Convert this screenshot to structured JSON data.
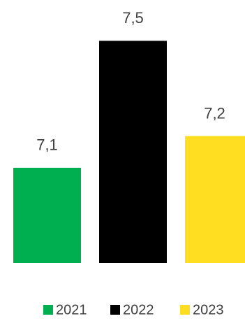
{
  "chart_data": {
    "type": "bar",
    "categories": [
      null
    ],
    "series": [
      {
        "name": "2021",
        "color": "#00b050",
        "values": [
          7.1
        ],
        "value_labels": [
          "7,1"
        ]
      },
      {
        "name": "2022",
        "color": "#000000",
        "values": [
          7.5
        ],
        "value_labels": [
          "7,5"
        ]
      },
      {
        "name": "2023",
        "color": "#ffde21",
        "values": [
          7.2
        ],
        "value_labels": [
          "7,2"
        ]
      }
    ],
    "ylim": [
      6.8,
      7.6
    ],
    "legend": "bottom"
  }
}
